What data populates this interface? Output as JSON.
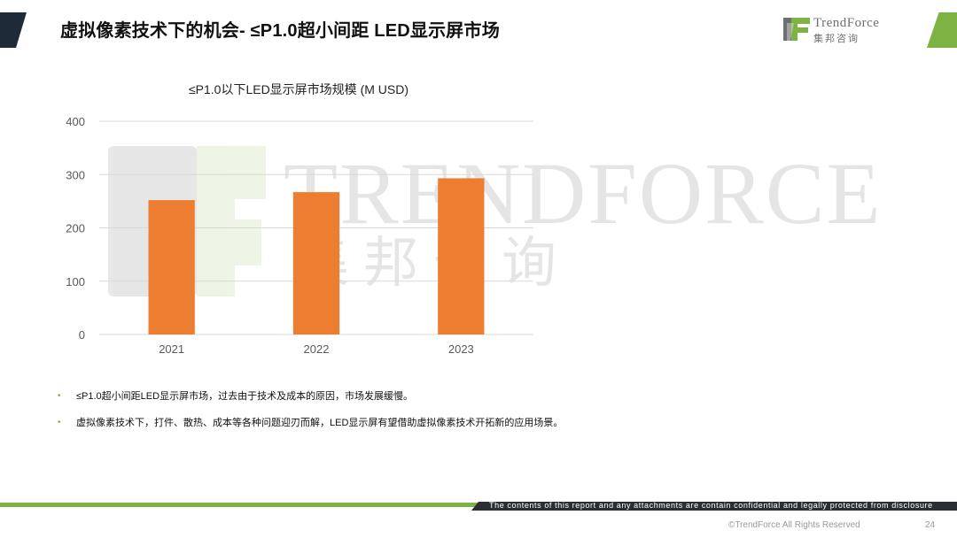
{
  "slide": {
    "title": "虚拟像素技术下的机会- ≤P1.0超小间距 LED显示屏市场",
    "page_number": "24",
    "copyright": "©TrendForce All Rights Reserved",
    "disclaimer": "The contents of this report and any attachments are contain confidential and legally protected from disclosure"
  },
  "logo": {
    "name": "TrendForce",
    "subtitle": "集邦咨询",
    "colors": {
      "green": "#7cb342",
      "gray": "#6d6f71"
    }
  },
  "watermark": {
    "name": "TRENDFORCE",
    "subtitle": "集邦咨询"
  },
  "chart_data": {
    "type": "bar",
    "title": "≤P1.0以下LED显示屏市场规模 (M USD)",
    "categories": [
      "2021",
      "2022",
      "2023"
    ],
    "values": [
      252,
      267,
      293
    ],
    "ylim": [
      0,
      400
    ],
    "yticks": [
      "0",
      "100",
      "200",
      "300",
      "400"
    ],
    "xlabel": "",
    "ylabel": "",
    "grid": true,
    "bar_color": "#ed7d31"
  },
  "bullets": [
    "≤P1.0超小间距LED显示屏市场，过去由于技术及成本的原因，市场发展缓慢。",
    "虚拟像素技术下，打件、散热、成本等各种问题迎刃而解，LED显示屏有望借助虚拟像素技术开拓新的应用场景。"
  ],
  "theme": {
    "accent_green": "#7cb342",
    "dark_navy": "#1e2a38",
    "footer_dark": "#2b2f33"
  }
}
